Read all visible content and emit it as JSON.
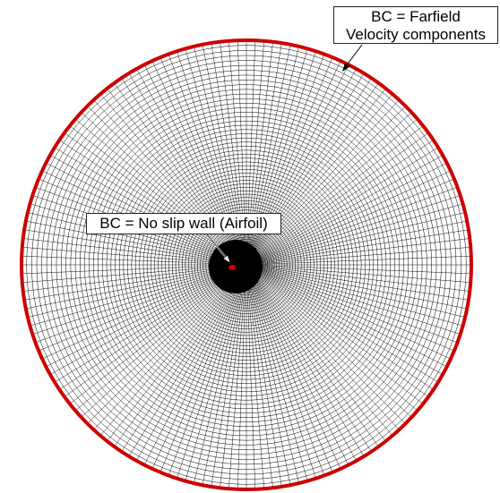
{
  "labels": {
    "farfield": {
      "line1": "BC = Farfield",
      "line2": "Velocity components"
    },
    "wall": "BC = No slip wall (Airfoil)"
  },
  "colors": {
    "mesh": "#000000",
    "boundary": "#cc0000",
    "airfoil": "#cc0000"
  }
}
